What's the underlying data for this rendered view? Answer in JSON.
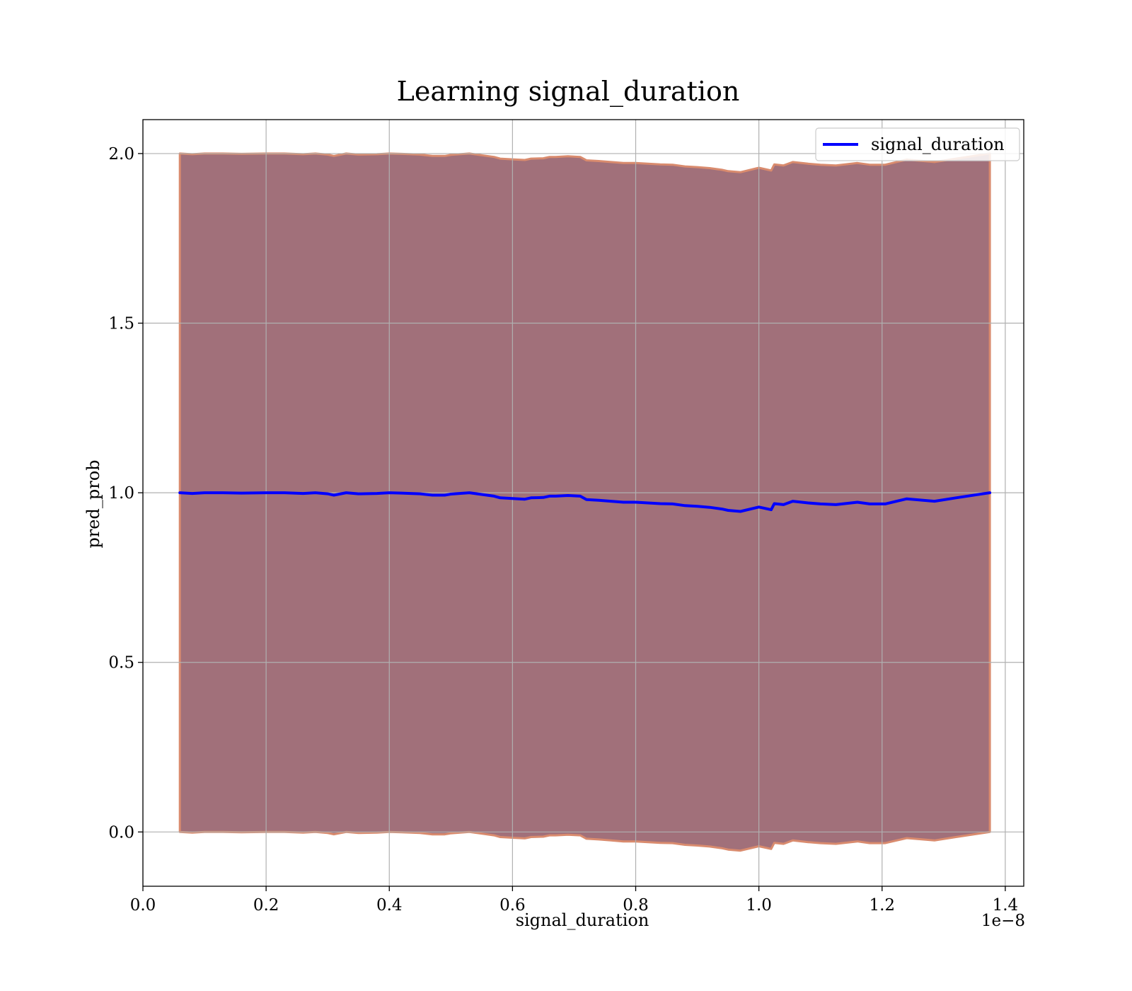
{
  "chart_data": {
    "type": "line",
    "title": "Learning signal_duration",
    "xlabel": "signal_duration",
    "ylabel": "pred_prob",
    "x_offset_label": "1e−8",
    "x_scale_exponent": -8,
    "xlim": [
      0.0,
      1.43
    ],
    "ylim": [
      -0.16,
      2.1
    ],
    "x_ticks": [
      0.0,
      0.2,
      0.4,
      0.6,
      0.8,
      1.0,
      1.2,
      1.4
    ],
    "x_tick_labels": [
      "0.0",
      "0.2",
      "0.4",
      "0.6",
      "0.8",
      "1.0",
      "1.2",
      "1.4"
    ],
    "y_ticks": [
      0.0,
      0.5,
      1.0,
      1.5,
      2.0
    ],
    "y_tick_labels": [
      "0.0",
      "0.5",
      "1.0",
      "1.5",
      "2.0"
    ],
    "grid": true,
    "legend_position": "upper right",
    "series": [
      {
        "name": "signal_duration",
        "color": "#0000ff",
        "x": [
          0.06,
          0.08,
          0.1,
          0.13,
          0.16,
          0.2,
          0.23,
          0.26,
          0.28,
          0.3,
          0.31,
          0.33,
          0.35,
          0.38,
          0.4,
          0.42,
          0.45,
          0.47,
          0.49,
          0.5,
          0.53,
          0.55,
          0.57,
          0.58,
          0.6,
          0.62,
          0.63,
          0.65,
          0.66,
          0.67,
          0.69,
          0.71,
          0.72,
          0.74,
          0.76,
          0.78,
          0.8,
          0.82,
          0.84,
          0.86,
          0.88,
          0.9,
          0.92,
          0.94,
          0.95,
          0.97,
          1.0,
          1.02,
          1.025,
          1.04,
          1.055,
          1.08,
          1.1,
          1.125,
          1.16,
          1.18,
          1.205,
          1.24,
          1.285,
          1.32,
          1.375
        ],
        "y": [
          1.0,
          0.998,
          1.0,
          1.0,
          0.999,
          1.0,
          1.0,
          0.998,
          1.0,
          0.997,
          0.993,
          1.0,
          0.997,
          0.998,
          1.0,
          0.999,
          0.997,
          0.993,
          0.993,
          0.996,
          1.0,
          0.995,
          0.99,
          0.985,
          0.983,
          0.981,
          0.985,
          0.986,
          0.99,
          0.99,
          0.992,
          0.99,
          0.98,
          0.978,
          0.975,
          0.972,
          0.972,
          0.97,
          0.968,
          0.967,
          0.962,
          0.96,
          0.957,
          0.952,
          0.948,
          0.945,
          0.958,
          0.95,
          0.968,
          0.965,
          0.975,
          0.97,
          0.967,
          0.965,
          0.972,
          0.967,
          0.967,
          0.982,
          0.975,
          0.985,
          1.0
        ]
      }
    ],
    "band": {
      "fill_color": "#a1707a",
      "edge_color": "#d98b6e",
      "upper": [
        2.0,
        1.998,
        2.0,
        2.0,
        1.999,
        2.0,
        2.0,
        1.998,
        2.0,
        1.997,
        1.993,
        2.0,
        1.997,
        1.998,
        2.0,
        1.999,
        1.997,
        1.993,
        1.993,
        1.996,
        2.0,
        1.995,
        1.99,
        1.985,
        1.983,
        1.981,
        1.985,
        1.986,
        1.99,
        1.99,
        1.992,
        1.99,
        1.98,
        1.978,
        1.975,
        1.972,
        1.972,
        1.97,
        1.968,
        1.967,
        1.962,
        1.96,
        1.957,
        1.952,
        1.948,
        1.945,
        1.958,
        1.95,
        1.968,
        1.965,
        1.975,
        1.97,
        1.967,
        1.965,
        1.972,
        1.967,
        1.967,
        1.982,
        1.975,
        1.985,
        2.0
      ],
      "lower": [
        0.0,
        -0.002,
        0.0,
        0.0,
        -0.001,
        0.0,
        0.0,
        -0.002,
        0.0,
        -0.003,
        -0.007,
        0.0,
        -0.003,
        -0.002,
        0.0,
        -0.001,
        -0.003,
        -0.007,
        -0.007,
        -0.004,
        0.0,
        -0.005,
        -0.01,
        -0.015,
        -0.017,
        -0.019,
        -0.015,
        -0.014,
        -0.01,
        -0.01,
        -0.008,
        -0.01,
        -0.02,
        -0.022,
        -0.025,
        -0.028,
        -0.028,
        -0.03,
        -0.032,
        -0.033,
        -0.038,
        -0.04,
        -0.043,
        -0.048,
        -0.052,
        -0.055,
        -0.042,
        -0.05,
        -0.032,
        -0.035,
        -0.025,
        -0.03,
        -0.033,
        -0.035,
        -0.028,
        -0.033,
        -0.033,
        -0.018,
        -0.025,
        -0.015,
        0.0
      ]
    }
  }
}
